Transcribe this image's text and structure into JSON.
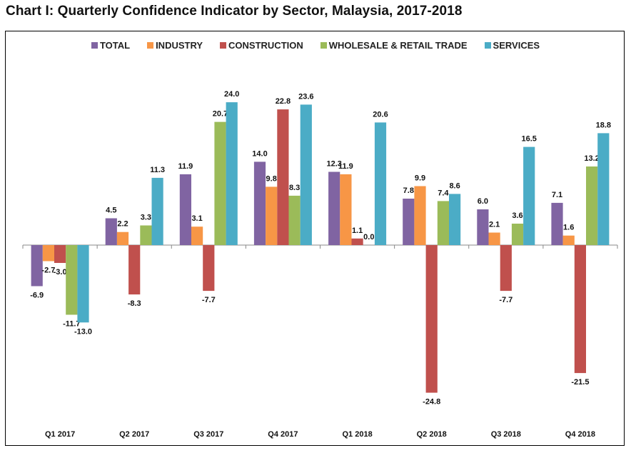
{
  "chart_data": {
    "type": "bar",
    "title": "Chart I: Quarterly Confidence Indicator by Sector, Malaysia, 2017-2018",
    "xlabel": "",
    "ylabel": "",
    "categories": [
      "Q1 2017",
      "Q2 2017",
      "Q3 2017",
      "Q4 2017",
      "Q1 2018",
      "Q2 2018",
      "Q3 2018",
      "Q4 2018"
    ],
    "series": [
      {
        "name": "TOTAL",
        "color": "#8064A2",
        "values": [
          -6.9,
          4.5,
          11.9,
          14.0,
          12.3,
          7.8,
          6.0,
          7.1
        ]
      },
      {
        "name": "INDUSTRY",
        "color": "#F79646",
        "values": [
          -2.7,
          2.2,
          3.1,
          9.8,
          11.9,
          9.9,
          2.1,
          1.6
        ]
      },
      {
        "name": "CONSTRUCTION",
        "color": "#C0504D",
        "values": [
          -3.0,
          -8.3,
          -7.7,
          22.8,
          1.1,
          -24.8,
          -7.7,
          -21.5
        ]
      },
      {
        "name": "WHOLESALE & RETAIL TRADE",
        "color": "#9BBB59",
        "values": [
          -11.7,
          3.3,
          20.7,
          8.3,
          0.0,
          7.4,
          3.6,
          13.2
        ]
      },
      {
        "name": "SERVICES",
        "color": "#4BACC6",
        "values": [
          -13.0,
          11.3,
          24.0,
          23.6,
          20.6,
          8.6,
          16.5,
          18.8
        ]
      }
    ],
    "ylim": [
      -28.5,
      28.5
    ],
    "grid": false,
    "legend": "top-center",
    "data_labels": true
  }
}
